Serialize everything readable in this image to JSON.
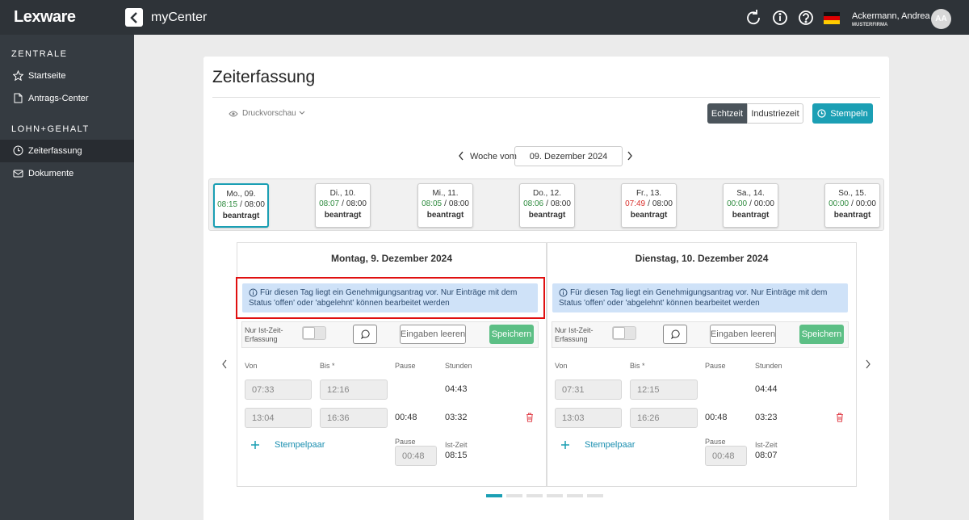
{
  "header": {
    "logo": "Lexware",
    "app_name": "myCenter",
    "user_name": "Ackermann, Andrea",
    "company": "MUSTERFIRMA",
    "avatar": "AA"
  },
  "sidebar": {
    "sections": [
      {
        "title": "ZENTRALE",
        "items": [
          "Startseite",
          "Antrags-Center"
        ]
      },
      {
        "title": "LOHN+GEHALT",
        "items": [
          "Zeiterfassung",
          "Dokumente"
        ]
      }
    ]
  },
  "page": {
    "title": "Zeiterfassung",
    "print_preview": "Druckvorschau",
    "modes": [
      "Echtzeit",
      "Industriezeit"
    ],
    "stamp_button": "Stempeln",
    "week_label": "Woche vom",
    "week_date": "09. Dezember 2024"
  },
  "days": {
    "separator": "/",
    "items": [
      {
        "label": "Mo., 09.",
        "actual": "08:15",
        "target": "08:00",
        "status": "beantragt",
        "color": "#2e8b3e"
      },
      {
        "label": "Di., 10.",
        "actual": "08:07",
        "target": "08:00",
        "status": "beantragt",
        "color": "#2e8b3e"
      },
      {
        "label": "Mi., 11.",
        "actual": "08:05",
        "target": "08:00",
        "status": "beantragt",
        "color": "#2e8b3e"
      },
      {
        "label": "Do., 12.",
        "actual": "08:06",
        "target": "08:00",
        "status": "beantragt",
        "color": "#2e8b3e"
      },
      {
        "label": "Fr., 13.",
        "actual": "07:49",
        "target": "08:00",
        "status": "beantragt",
        "color": "#d9302c"
      },
      {
        "label": "Sa., 14.",
        "actual": "00:00",
        "target": "00:00",
        "status": "beantragt",
        "color": "#2e8b3e"
      },
      {
        "label": "So., 15.",
        "actual": "00:00",
        "target": "00:00",
        "status": "beantragt",
        "color": "#2e8b3e"
      }
    ]
  },
  "panels": [
    {
      "title": "Montag, 9. Dezember 2024",
      "info": "Für diesen Tag liegt ein Genehmigungsantrag vor. Nur Einträge mit dem Status 'offen' oder 'abgelehnt' können bearbeitet werden",
      "toggle_label": "Nur Ist-Zeit-Erfassung",
      "clear_button": "Eingaben leeren",
      "save_button": "Speichern",
      "columns": [
        "Von",
        "Bis *",
        "Pause",
        "Stunden"
      ],
      "rows": [
        {
          "from": "07:33",
          "to": "12:16",
          "pause": null,
          "hours": "04:43"
        },
        {
          "from": "13:04",
          "to": "16:36",
          "pause": "00:48",
          "hours": "03:32"
        }
      ],
      "add_label": "Stempelpaar",
      "pause_label": "Pause",
      "pause_total": "00:48",
      "actual_label": "Ist-Zeit",
      "actual_total": "08:15"
    },
    {
      "title": "Dienstag, 10. Dezember 2024",
      "info": "Für diesen Tag liegt ein Genehmigungsantrag vor. Nur Einträge mit dem Status 'offen' oder 'abgelehnt' können bearbeitet werden",
      "toggle_label": "Nur Ist-Zeit-Erfassung",
      "clear_button": "Eingaben leeren",
      "save_button": "Speichern",
      "columns": [
        "Von",
        "Bis *",
        "Pause",
        "Stunden"
      ],
      "rows": [
        {
          "from": "07:31",
          "to": "12:15",
          "pause": null,
          "hours": "04:44"
        },
        {
          "from": "13:03",
          "to": "16:26",
          "pause": "00:48",
          "hours": "03:23"
        }
      ],
      "add_label": "Stempelpaar",
      "pause_label": "Pause",
      "pause_total": "00:48",
      "actual_label": "Ist-Zeit",
      "actual_total": "08:07"
    }
  ]
}
